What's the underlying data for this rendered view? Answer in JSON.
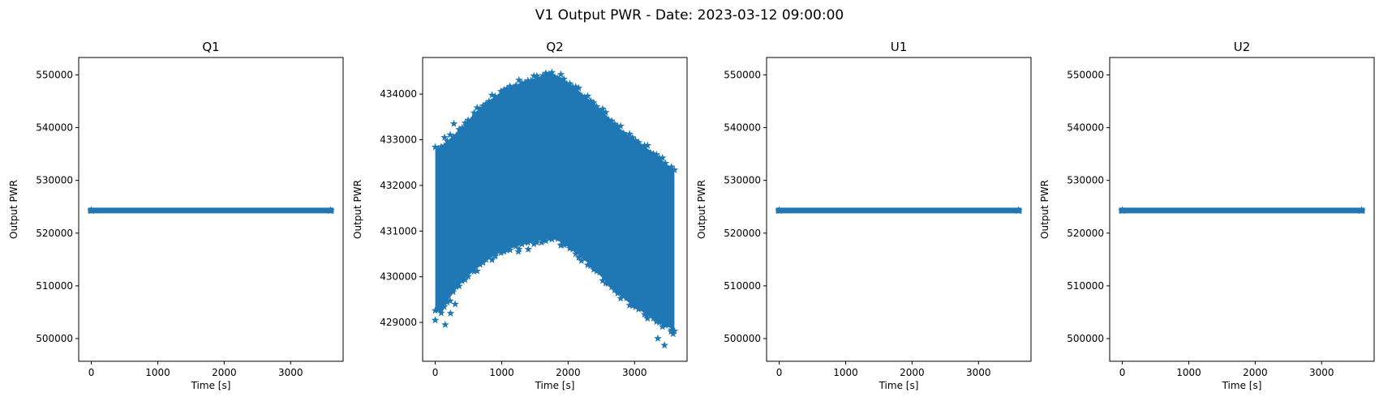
{
  "figure": {
    "suptitle": "V1 Output PWR - Date: 2023-03-12 09:00:00"
  },
  "chart_data": [
    {
      "type": "scatter",
      "title": "Q1",
      "xlabel": "Time [s]",
      "ylabel": "Output PWR",
      "xlim": [
        -190,
        3790
      ],
      "ylim": [
        495700,
        553300
      ],
      "xticks": [
        0,
        1000,
        2000,
        3000
      ],
      "yticks": [
        500000,
        510000,
        520000,
        530000,
        540000,
        550000
      ],
      "marker": "star",
      "color": "#1f77b4",
      "series": [
        {
          "kind": "constant",
          "x_range": [
            0,
            3600
          ],
          "y": 524288
        }
      ]
    },
    {
      "type": "scatter",
      "title": "Q2",
      "xlabel": "Time [s]",
      "ylabel": "Output PWR",
      "xlim": [
        -190,
        3790
      ],
      "ylim": [
        428150,
        434800
      ],
      "xticks": [
        0,
        1000,
        2000,
        3000
      ],
      "yticks": [
        429000,
        430000,
        431000,
        432000,
        433000,
        434000
      ],
      "marker": "star",
      "color": "#1f77b4",
      "series": [
        {
          "kind": "band",
          "x_range": [
            0,
            3600
          ],
          "upper_envelope": [
            [
              0,
              432800
            ],
            [
              100,
              432850
            ],
            [
              200,
              433000
            ],
            [
              400,
              433250
            ],
            [
              600,
              433600
            ],
            [
              800,
              433850
            ],
            [
              1000,
              434050
            ],
            [
              1200,
              434200
            ],
            [
              1400,
              434300
            ],
            [
              1600,
              434400
            ],
            [
              1750,
              434450
            ],
            [
              1900,
              434350
            ],
            [
              2100,
              434150
            ],
            [
              2300,
              433900
            ],
            [
              2500,
              433650
            ],
            [
              2700,
              433350
            ],
            [
              2900,
              433100
            ],
            [
              3100,
              432900
            ],
            [
              3300,
              432700
            ],
            [
              3500,
              432450
            ],
            [
              3600,
              432300
            ]
          ],
          "lower_envelope": [
            [
              0,
              429300
            ],
            [
              100,
              429200
            ],
            [
              200,
              429500
            ],
            [
              400,
              429900
            ],
            [
              600,
              430150
            ],
            [
              800,
              430400
            ],
            [
              1000,
              430550
            ],
            [
              1200,
              430650
            ],
            [
              1400,
              430750
            ],
            [
              1600,
              430800
            ],
            [
              1750,
              430850
            ],
            [
              1900,
              430750
            ],
            [
              2100,
              430550
            ],
            [
              2300,
              430300
            ],
            [
              2500,
              430000
            ],
            [
              2700,
              429700
            ],
            [
              2900,
              429450
            ],
            [
              3100,
              429250
            ],
            [
              3300,
              429050
            ],
            [
              3500,
              428900
            ],
            [
              3600,
              428850
            ]
          ],
          "outliers": [
            [
              0,
              429050
            ],
            [
              150,
              428950
            ],
            [
              230,
              429200
            ],
            [
              300,
              429400
            ],
            [
              480,
              430050
            ],
            [
              620,
              430300
            ],
            [
              900,
              430450
            ],
            [
              1250,
              430550
            ],
            [
              1400,
              430600
            ],
            [
              1600,
              430750
            ],
            [
              1900,
              430700
            ],
            [
              2200,
              430350
            ],
            [
              2600,
              429850
            ],
            [
              2950,
              429550
            ],
            [
              3180,
              429150
            ],
            [
              3350,
              428650
            ],
            [
              3450,
              428500
            ],
            [
              3550,
              428800
            ],
            [
              3580,
              428750
            ],
            [
              280,
              433350
            ],
            [
              140,
              433050
            ],
            [
              3300,
              432600
            ],
            [
              3500,
              432300
            ],
            [
              3050,
              432900
            ]
          ]
        }
      ]
    },
    {
      "type": "scatter",
      "title": "U1",
      "xlabel": "Time [s]",
      "ylabel": "Output PWR",
      "xlim": [
        -190,
        3790
      ],
      "ylim": [
        495700,
        553300
      ],
      "xticks": [
        0,
        1000,
        2000,
        3000
      ],
      "yticks": [
        500000,
        510000,
        520000,
        530000,
        540000,
        550000
      ],
      "marker": "star",
      "color": "#1f77b4",
      "series": [
        {
          "kind": "constant",
          "x_range": [
            0,
            3600
          ],
          "y": 524288
        }
      ]
    },
    {
      "type": "scatter",
      "title": "U2",
      "xlabel": "Time [s]",
      "ylabel": "Output PWR",
      "xlim": [
        -190,
        3790
      ],
      "ylim": [
        495700,
        553300
      ],
      "xticks": [
        0,
        1000,
        2000,
        3000
      ],
      "yticks": [
        500000,
        510000,
        520000,
        530000,
        540000,
        550000
      ],
      "marker": "star",
      "color": "#1f77b4",
      "series": [
        {
          "kind": "constant",
          "x_range": [
            0,
            3600
          ],
          "y": 524288
        }
      ]
    }
  ]
}
